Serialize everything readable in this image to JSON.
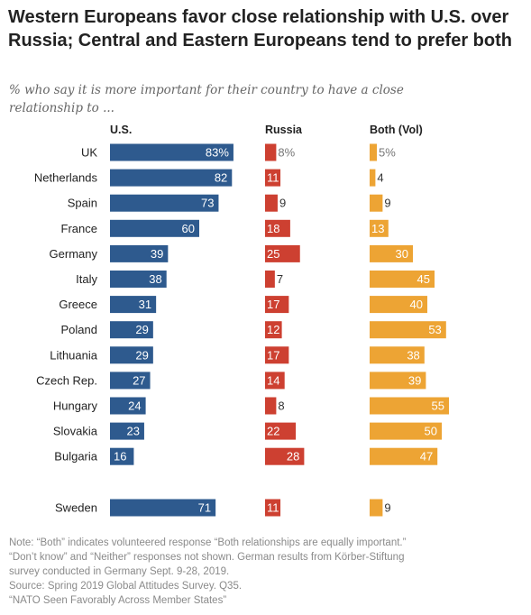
{
  "title": "Western Europeans favor close relationship with U.S. over Russia; Central and Eastern Europeans tend to prefer both",
  "subtitle": "% who say it is more important for their country to have a close relationship to ...",
  "notes": [
    "Note: “Both” indicates volunteered response “Both relationships are equally important.”",
    "“Don’t know” and “Neither” responses not shown. German results from Körber-Stiftung",
    "survey conducted in Germany Sept. 9-28, 2019.",
    "Source: Spring 2019 Global Attitudes Survey. Q35.",
    "“NATO Seen Favorably Across Member States”"
  ],
  "colors": {
    "us": "#2E5A8E",
    "russia": "#CD4031",
    "both": "#EDA434",
    "label_dark": "#333333",
    "label_grey": "#777777"
  },
  "chart_data": {
    "type": "bar",
    "orientation": "horizontal",
    "categories": [
      "UK",
      "Netherlands",
      "Spain",
      "France",
      "Germany",
      "Italy",
      "Greece",
      "Poland",
      "Lithuania",
      "Czech Rep.",
      "Hungary",
      "Slovakia",
      "Bulgaria",
      "Sweden"
    ],
    "series": [
      {
        "name": "U.S.",
        "values": [
          83,
          82,
          73,
          60,
          39,
          38,
          31,
          29,
          29,
          27,
          24,
          23,
          16,
          71
        ],
        "value_labels": [
          "83%",
          "82",
          "73",
          "60",
          "39",
          "38",
          "31",
          "29",
          "29",
          "27",
          "24",
          "23",
          "16",
          "71"
        ]
      },
      {
        "name": "Russia",
        "values": [
          8,
          11,
          9,
          18,
          25,
          7,
          17,
          12,
          17,
          14,
          8,
          22,
          28,
          11
        ],
        "value_labels": [
          "8%",
          "11",
          "9",
          "18",
          "25",
          "7",
          "17",
          "12",
          "17",
          "14",
          "8",
          "22",
          "28",
          "11"
        ]
      },
      {
        "name": "Both (Vol)",
        "values": [
          5,
          4,
          9,
          13,
          30,
          45,
          40,
          53,
          38,
          39,
          55,
          50,
          47,
          9
        ],
        "value_labels": [
          "5%",
          "4",
          "9",
          "13",
          "30",
          "45",
          "40",
          "53",
          "38",
          "39",
          "55",
          "50",
          "47",
          "9"
        ]
      }
    ],
    "unit": "%",
    "grid": false,
    "legend": "column headers"
  }
}
